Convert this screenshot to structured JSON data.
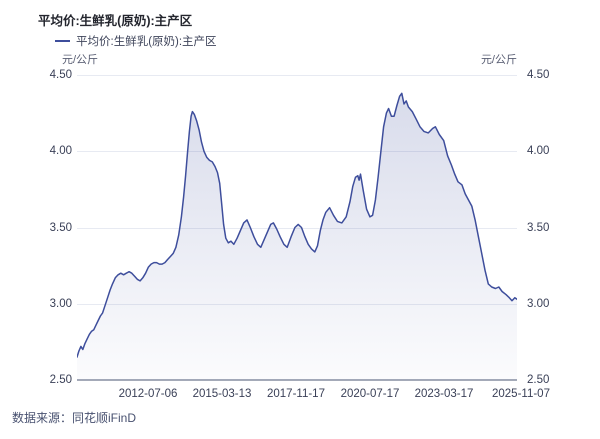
{
  "header": {
    "title": "平均价:生鲜乳(原奶):主产区"
  },
  "legend": {
    "label": "平均价:生鲜乳(原奶):主产区",
    "marker_icon": "line-series-marker",
    "marker_color": "#3E4E9C"
  },
  "axes": {
    "unit": "元/公斤",
    "y_ticks": [
      "4.50",
      "4.00",
      "3.50",
      "3.00",
      "2.50"
    ],
    "x_ticks": [
      "2012-07-06",
      "2015-03-13",
      "2017-11-17",
      "2020-07-17",
      "2023-03-17",
      "2025-11-07"
    ]
  },
  "footer": {
    "source": "数据来源：同花顺iFinD"
  },
  "colors": {
    "line": "#3E4E9C",
    "area_top": "rgba(62,78,156,0.20)",
    "area_bottom": "rgba(62,78,156,0.02)",
    "grid": "#E7EAF2",
    "axis_line": "#A4AAB8",
    "tick_text": "#3A4057",
    "title_text": "#24262E",
    "footer_text": "#47506F"
  },
  "chart_data": {
    "type": "area",
    "title": "平均价:生鲜乳(原奶):主产区",
    "xlabel": "",
    "ylabel": "元/公斤",
    "ylim": [
      2.5,
      4.5
    ],
    "xlim_years": [
      2009.93,
      2025.9
    ],
    "grid": true,
    "legend_position": "top-left",
    "x_tick_labels": [
      "2012-07-06",
      "2015-03-13",
      "2017-11-17",
      "2020-07-17",
      "2023-03-17",
      "2025-11-07"
    ],
    "series_name": "平均价:生鲜乳(原奶):主产区",
    "points": [
      [
        2009.93,
        2.65
      ],
      [
        2010.0,
        2.69
      ],
      [
        2010.07,
        2.72
      ],
      [
        2010.14,
        2.7
      ],
      [
        2010.22,
        2.74
      ],
      [
        2010.3,
        2.77
      ],
      [
        2010.38,
        2.8
      ],
      [
        2010.46,
        2.82
      ],
      [
        2010.54,
        2.83
      ],
      [
        2010.62,
        2.86
      ],
      [
        2010.7,
        2.89
      ],
      [
        2010.78,
        2.92
      ],
      [
        2010.86,
        2.94
      ],
      [
        2010.95,
        2.99
      ],
      [
        2011.04,
        3.04
      ],
      [
        2011.13,
        3.09
      ],
      [
        2011.22,
        3.13
      ],
      [
        2011.32,
        3.17
      ],
      [
        2011.42,
        3.19
      ],
      [
        2011.52,
        3.2
      ],
      [
        2011.62,
        3.19
      ],
      [
        2011.72,
        3.2
      ],
      [
        2011.82,
        3.21
      ],
      [
        2011.92,
        3.2
      ],
      [
        2012.02,
        3.18
      ],
      [
        2012.12,
        3.16
      ],
      [
        2012.22,
        3.15
      ],
      [
        2012.32,
        3.17
      ],
      [
        2012.42,
        3.2
      ],
      [
        2012.52,
        3.24
      ],
      [
        2012.62,
        3.26
      ],
      [
        2012.72,
        3.27
      ],
      [
        2012.82,
        3.27
      ],
      [
        2012.92,
        3.26
      ],
      [
        2013.02,
        3.26
      ],
      [
        2013.12,
        3.27
      ],
      [
        2013.22,
        3.29
      ],
      [
        2013.32,
        3.31
      ],
      [
        2013.42,
        3.33
      ],
      [
        2013.52,
        3.37
      ],
      [
        2013.62,
        3.45
      ],
      [
        2013.72,
        3.57
      ],
      [
        2013.8,
        3.7
      ],
      [
        2013.87,
        3.84
      ],
      [
        2013.94,
        3.99
      ],
      [
        2014.01,
        4.13
      ],
      [
        2014.07,
        4.23
      ],
      [
        2014.12,
        4.26
      ],
      [
        2014.19,
        4.24
      ],
      [
        2014.27,
        4.2
      ],
      [
        2014.36,
        4.14
      ],
      [
        2014.45,
        4.06
      ],
      [
        2014.54,
        4.0
      ],
      [
        2014.64,
        3.96
      ],
      [
        2014.74,
        3.94
      ],
      [
        2014.84,
        3.93
      ],
      [
        2014.94,
        3.9
      ],
      [
        2015.03,
        3.86
      ],
      [
        2015.11,
        3.79
      ],
      [
        2015.18,
        3.66
      ],
      [
        2015.25,
        3.52
      ],
      [
        2015.33,
        3.43
      ],
      [
        2015.42,
        3.4
      ],
      [
        2015.52,
        3.41
      ],
      [
        2015.62,
        3.39
      ],
      [
        2015.74,
        3.43
      ],
      [
        2015.86,
        3.48
      ],
      [
        2015.98,
        3.53
      ],
      [
        2016.1,
        3.55
      ],
      [
        2016.22,
        3.5
      ],
      [
        2016.35,
        3.44
      ],
      [
        2016.48,
        3.39
      ],
      [
        2016.6,
        3.37
      ],
      [
        2016.72,
        3.42
      ],
      [
        2016.84,
        3.47
      ],
      [
        2016.96,
        3.52
      ],
      [
        2017.06,
        3.53
      ],
      [
        2017.18,
        3.49
      ],
      [
        2017.3,
        3.44
      ],
      [
        2017.44,
        3.39
      ],
      [
        2017.56,
        3.37
      ],
      [
        2017.7,
        3.44
      ],
      [
        2017.84,
        3.5
      ],
      [
        2017.96,
        3.52
      ],
      [
        2018.08,
        3.5
      ],
      [
        2018.2,
        3.44
      ],
      [
        2018.32,
        3.39
      ],
      [
        2018.44,
        3.36
      ],
      [
        2018.56,
        3.34
      ],
      [
        2018.66,
        3.38
      ],
      [
        2018.76,
        3.48
      ],
      [
        2018.86,
        3.55
      ],
      [
        2018.96,
        3.6
      ],
      [
        2019.1,
        3.63
      ],
      [
        2019.24,
        3.58
      ],
      [
        2019.38,
        3.54
      ],
      [
        2019.54,
        3.53
      ],
      [
        2019.7,
        3.57
      ],
      [
        2019.84,
        3.67
      ],
      [
        2019.94,
        3.77
      ],
      [
        2020.04,
        3.83
      ],
      [
        2020.12,
        3.84
      ],
      [
        2020.17,
        3.81
      ],
      [
        2020.22,
        3.85
      ],
      [
        2020.32,
        3.74
      ],
      [
        2020.44,
        3.62
      ],
      [
        2020.56,
        3.57
      ],
      [
        2020.66,
        3.58
      ],
      [
        2020.76,
        3.68
      ],
      [
        2020.86,
        3.83
      ],
      [
        2020.96,
        4.0
      ],
      [
        2021.06,
        4.16
      ],
      [
        2021.16,
        4.25
      ],
      [
        2021.24,
        4.28
      ],
      [
        2021.34,
        4.23
      ],
      [
        2021.44,
        4.23
      ],
      [
        2021.54,
        4.3
      ],
      [
        2021.64,
        4.36
      ],
      [
        2021.72,
        4.38
      ],
      [
        2021.8,
        4.31
      ],
      [
        2021.88,
        4.33
      ],
      [
        2021.96,
        4.29
      ],
      [
        2022.1,
        4.26
      ],
      [
        2022.24,
        4.21
      ],
      [
        2022.38,
        4.16
      ],
      [
        2022.52,
        4.13
      ],
      [
        2022.68,
        4.12
      ],
      [
        2022.84,
        4.15
      ],
      [
        2022.94,
        4.16
      ],
      [
        2023.08,
        4.11
      ],
      [
        2023.24,
        4.07
      ],
      [
        2023.38,
        3.97
      ],
      [
        2023.52,
        3.91
      ],
      [
        2023.64,
        3.85
      ],
      [
        2023.76,
        3.8
      ],
      [
        2023.9,
        3.78
      ],
      [
        2024.02,
        3.72
      ],
      [
        2024.14,
        3.68
      ],
      [
        2024.26,
        3.64
      ],
      [
        2024.38,
        3.55
      ],
      [
        2024.5,
        3.44
      ],
      [
        2024.62,
        3.33
      ],
      [
        2024.74,
        3.22
      ],
      [
        2024.86,
        3.13
      ],
      [
        2024.98,
        3.11
      ],
      [
        2025.12,
        3.1
      ],
      [
        2025.24,
        3.11
      ],
      [
        2025.36,
        3.08
      ],
      [
        2025.5,
        3.06
      ],
      [
        2025.62,
        3.04
      ],
      [
        2025.72,
        3.02
      ],
      [
        2025.82,
        3.04
      ],
      [
        2025.9,
        3.03
      ]
    ]
  }
}
